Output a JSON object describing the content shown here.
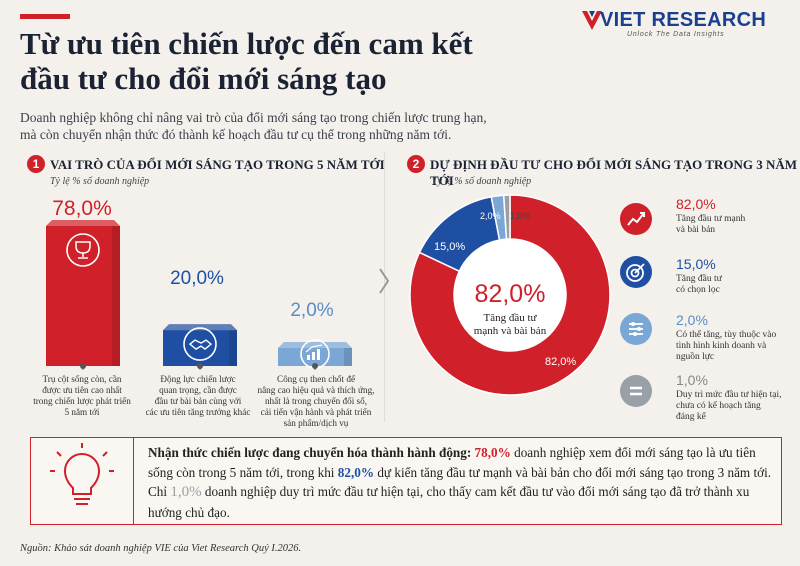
{
  "header": {
    "title_line1": "Từ ưu tiên chiến lược đến cam kết",
    "title_line2": "đầu tư cho đổi mới sáng tạo",
    "intro_line1": "Doanh nghiệp không chỉ nâng vai trò của đổi mới sáng tạo trong chiến lược trung hạn,",
    "intro_line2": "mà còn chuyển nhận thức đó thành kế hoạch đầu tư cụ thể trong những năm tới."
  },
  "logo": {
    "text": "VIET RESEARCH",
    "tagline": "Unlock The Data Insights"
  },
  "colors": {
    "red": "#d0202a",
    "blue": "#1f4fa3",
    "light_blue": "#7aa7d6",
    "grey": "#9aa0a8"
  },
  "section1": {
    "num": "1",
    "title": "VAI TRÒ CỦA ĐỔI MỚI SÁNG TẠO TRONG 5 NĂM TỚI",
    "subtitle": "Tỷ lệ % số doanh nghiệp",
    "bars": [
      {
        "value_label": "78,0%",
        "icon": "trophy-icon",
        "desc": [
          "Trụ cột sống còn, cần",
          "được ưu tiên cao nhất",
          "trong chiến lược phát triển",
          "5 năm tới"
        ]
      },
      {
        "value_label": "20,0%",
        "icon": "handshake-icon",
        "desc": [
          "Động lực chiến lược",
          "quan trọng, cần được",
          "đầu tư bài bản cùng với",
          "các ưu tiên tăng trưởng khác"
        ]
      },
      {
        "value_label": "2,0%",
        "icon": "growth-chart-icon",
        "desc": [
          "Công cụ then chốt để",
          "nâng cao hiệu quả và thích ứng,",
          "nhất là trong chuyển đổi số,",
          "cải tiến vận hành và phát triển",
          "sản phẩm/dịch vụ"
        ]
      }
    ]
  },
  "section2": {
    "num": "2",
    "title": "DỰ ĐỊNH ĐẦU TƯ CHO ĐỔI MỚI SÁNG TẠO TRONG 3 NĂM TỚI",
    "subtitle": "Tỷ lệ % số doanh nghiệp",
    "center_value": "82,0%",
    "center_label_1": "Tăng đầu tư",
    "center_label_2": "mạnh và bài bản",
    "slice_labels": [
      "82,0%",
      "15,0%",
      "2,0%",
      "1,0%"
    ],
    "legend": [
      {
        "value": "82,0%",
        "icon": "growth-spark-icon",
        "desc": [
          "Tăng đầu tư mạnh",
          "và bài bản"
        ]
      },
      {
        "value": "15,0%",
        "icon": "target-icon",
        "desc": [
          "Tăng đầu tư",
          "có chọn lọc"
        ]
      },
      {
        "value": "2,0%",
        "icon": "sliders-icon",
        "desc": [
          "Có thể tăng, tùy thuộc vào",
          "tình hình kinh doanh và",
          "nguồn lực"
        ]
      },
      {
        "value": "1,0%",
        "icon": "equal-icon",
        "desc": [
          "Duy trì mức đầu tư hiện tại,",
          "chưa có kế hoạch tăng",
          "đáng kể"
        ]
      }
    ]
  },
  "callout": {
    "bold_lead": "Nhận thức chiến lược đang chuyển hóa thành hành động:",
    "v1": "78,0%",
    "t1": " doanh nghiệp xem đổi mới sáng tạo là ưu tiên sống còn trong 5 năm tới, trong khi ",
    "v2": "82,0%",
    "t2": " dự kiến tăng đầu tư mạnh và bài bản cho đổi mới sáng tạo trong 3 năm tới. Chỉ ",
    "v3": "1,0%",
    "t3": " doanh nghiệp duy trì mức đầu tư hiện tại, cho thấy cam kết đầu tư vào đổi mới sáng tạo đã trở thành xu hướng chủ đạo.",
    "icon": "lightbulb-icon"
  },
  "source": "Nguồn: Khảo sát doanh nghiệp VIE của Viet Research Quý I.2026.",
  "chart_data": [
    {
      "type": "bar",
      "title": "VAI TRÒ CỦA ĐỔI MỚI SÁNG TẠO TRONG 5 NĂM TỚI",
      "ylabel": "Tỷ lệ % số doanh nghiệp",
      "categories": [
        "Trụ cột sống còn, cần được ưu tiên cao nhất trong chiến lược phát triển 5 năm tới",
        "Động lực chiến lược quan trọng, cần được đầu tư bài bản cùng với các ưu tiên tăng trưởng khác",
        "Công cụ then chốt để nâng cao hiệu quả và thích ứng, nhất là trong chuyển đổi số, cải tiến vận hành và phát triển sản phẩm/dịch vụ"
      ],
      "values": [
        78.0,
        20.0,
        2.0
      ],
      "colors": [
        "#d0202a",
        "#1f4fa3",
        "#7aa7d6"
      ]
    },
    {
      "type": "pie",
      "title": "DỰ ĐỊNH ĐẦU TƯ CHO ĐỔI MỚI SÁNG TẠO TRONG 3 NĂM TỚI",
      "categories": [
        "Tăng đầu tư mạnh và bài bản",
        "Tăng đầu tư có chọn lọc",
        "Có thể tăng, tùy thuộc vào tình hình kinh doanh và nguồn lực",
        "Duy trì mức đầu tư hiện tại, chưa có kế hoạch tăng đáng kể"
      ],
      "values": [
        82.0,
        15.0,
        2.0,
        1.0
      ],
      "colors": [
        "#d0202a",
        "#1f4fa3",
        "#7aa7d6",
        "#9aa0a8"
      ]
    }
  ]
}
